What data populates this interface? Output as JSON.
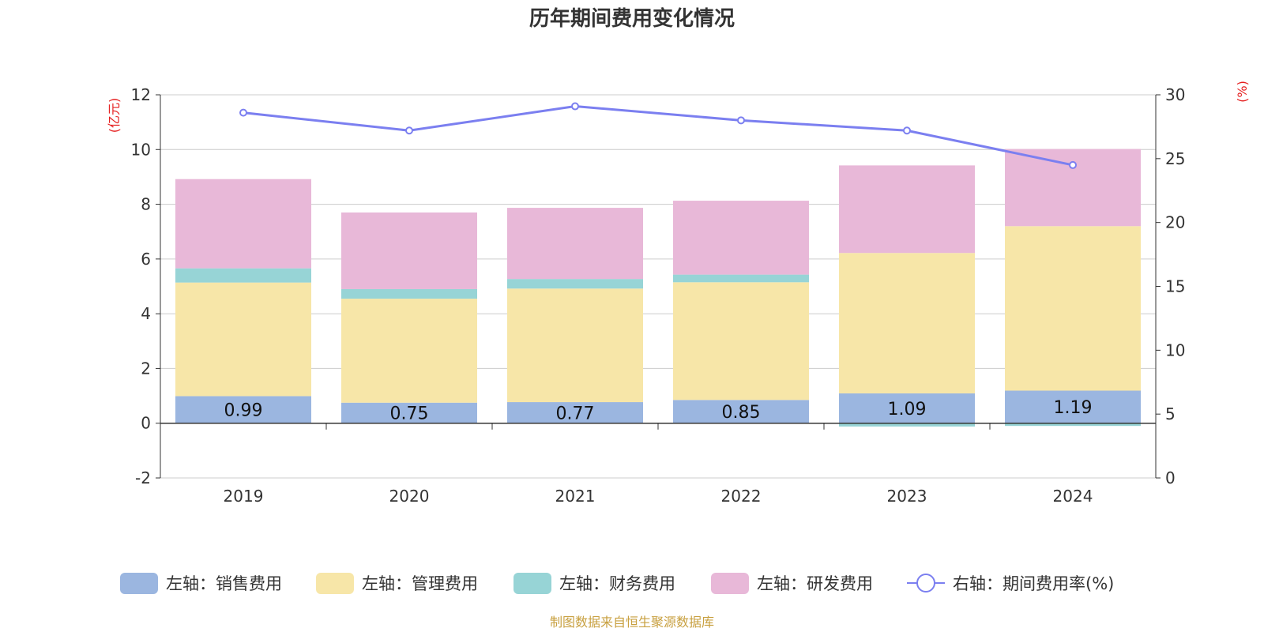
{
  "chart_data": {
    "type": "bar",
    "title": "历年期间费用变化情况",
    "categories": [
      "2019",
      "2020",
      "2021",
      "2022",
      "2023",
      "2024"
    ],
    "left_axis": {
      "unit_label": "(亿元)",
      "ylim": [
        -2,
        12
      ],
      "ticks": [
        -2,
        0,
        2,
        4,
        6,
        8,
        10,
        12
      ]
    },
    "right_axis": {
      "unit_label": "(%)",
      "ylim": [
        0,
        30
      ],
      "ticks": [
        0,
        5,
        10,
        15,
        20,
        25,
        30
      ]
    },
    "grid": true,
    "legend_position": "bottom",
    "series": [
      {
        "name": "左轴：销售费用",
        "type": "bar",
        "stack": true,
        "color": "#9bb6e0",
        "values": [
          0.99,
          0.75,
          0.77,
          0.85,
          1.09,
          1.19
        ],
        "labels": [
          "0.99",
          "0.75",
          "0.77",
          "0.85",
          "1.09",
          "1.19"
        ]
      },
      {
        "name": "左轴：管理费用",
        "type": "bar",
        "stack": true,
        "color": "#f7e6a8",
        "values": [
          4.15,
          3.8,
          4.15,
          4.3,
          5.13,
          6.01
        ]
      },
      {
        "name": "左轴：财务费用",
        "type": "bar",
        "stack": true,
        "color": "#97d4d6",
        "values": [
          0.52,
          0.35,
          0.35,
          0.28,
          -0.12,
          -0.1
        ]
      },
      {
        "name": "左轴：研发费用",
        "type": "bar",
        "stack": true,
        "color": "#e8b8d8",
        "values": [
          3.26,
          2.8,
          2.6,
          2.7,
          3.2,
          2.82
        ]
      },
      {
        "name": "右轴：期间费用率(%)",
        "type": "line",
        "axis": "right",
        "color": "#7b7ff0",
        "values": [
          28.6,
          27.2,
          29.1,
          28.0,
          27.2,
          24.5
        ]
      }
    ],
    "source": "制图数据来自恒生聚源数据库"
  },
  "colors": {
    "axis_unit": "#e52020",
    "source_text": "#c8a040",
    "grid": "#cccccc",
    "axis": "#333333"
  }
}
